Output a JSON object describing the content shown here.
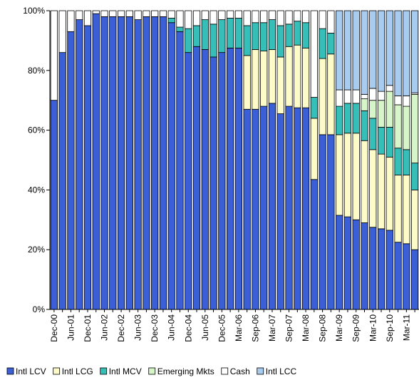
{
  "chart_data": {
    "type": "stacked_bar_100",
    "categories": [
      "Dec-00",
      null,
      "Jun-01",
      null,
      "Dec-01",
      null,
      "Jun-02",
      null,
      "Dec-02",
      null,
      "Jun-03",
      null,
      "Dec-03",
      null,
      "Jun-04",
      null,
      "Dec-04",
      null,
      "Jun-05",
      null,
      "Dec-05",
      null,
      "Mar-06",
      null,
      "Sep-06",
      null,
      "Mar-07",
      null,
      "Sep-07",
      null,
      "Mar-08",
      null,
      "Sep-08",
      null,
      "Mar-09",
      null,
      "Sep-09",
      null,
      "Mar-10",
      null,
      "Sep-10",
      null,
      "Mar-11",
      null
    ],
    "series": [
      {
        "name": "Intl LCV",
        "color": "#3a5fd6",
        "values": [
          70,
          86,
          93,
          97,
          95,
          99,
          98,
          98,
          98,
          98,
          97,
          98,
          98,
          98,
          96,
          93,
          86,
          88,
          87,
          84.5,
          86,
          87.5,
          87.5,
          67,
          67,
          68,
          69,
          65.5,
          68,
          67.5,
          67.5,
          43.5,
          58.5,
          58.5,
          31.5,
          31,
          30,
          29,
          27.5,
          27,
          26.5,
          22.5,
          22,
          20
        ]
      },
      {
        "name": "Intl LCG",
        "color": "#fdfbc8",
        "values": [
          0,
          0,
          0,
          0,
          0,
          0,
          0,
          0,
          0,
          0,
          0,
          0,
          0,
          0,
          0,
          0,
          0,
          0,
          0,
          0,
          0,
          0,
          0,
          18,
          20,
          18.5,
          18,
          19,
          20,
          21,
          20,
          20.5,
          25.5,
          27,
          27,
          28,
          29,
          27.5,
          26,
          25,
          24.5,
          22.5,
          23,
          20
        ]
      },
      {
        "name": "Intl MCV",
        "color": "#35bfb8",
        "values": [
          0,
          0,
          0,
          0,
          0,
          0,
          0,
          0,
          0,
          0,
          0,
          0,
          0,
          0,
          1.5,
          1.5,
          8,
          7,
          10,
          11,
          11,
          10,
          10,
          10,
          9,
          9.5,
          10,
          10.5,
          7.5,
          8,
          8.5,
          7,
          10,
          7,
          9.5,
          10,
          10,
          10,
          10.5,
          9,
          10,
          9,
          8.5,
          9
        ]
      },
      {
        "name": "Emerging Mkts",
        "color": "#d6f5c8",
        "values": [
          0,
          0,
          0,
          0,
          0,
          0,
          0,
          0,
          0,
          0,
          0,
          0,
          0,
          0,
          0,
          0,
          0,
          0,
          0,
          0,
          0,
          0,
          0,
          0,
          0,
          0,
          0,
          0,
          0,
          0,
          0,
          0,
          0,
          0,
          0,
          0,
          0,
          4,
          6,
          9,
          12,
          14.5,
          14.5,
          23
        ]
      },
      {
        "name": "Cash",
        "color": "#ffffff",
        "values": [
          30,
          14,
          7,
          3,
          5,
          1,
          2,
          2,
          2,
          2,
          3,
          2,
          2,
          2,
          2.5,
          5.5,
          6,
          5,
          3,
          4.5,
          3,
          2.5,
          2.5,
          5,
          4,
          4,
          3,
          5,
          4.5,
          3.5,
          4,
          29,
          6,
          7.5,
          5.5,
          4.5,
          4.5,
          1.5,
          4,
          3,
          2,
          3,
          3.5,
          0.5
        ]
      },
      {
        "name": "Intl LCC",
        "color": "#a8cbf0",
        "values": [
          0,
          0,
          0,
          0,
          0,
          0,
          0,
          0,
          0,
          0,
          0,
          0,
          0,
          0,
          0,
          0,
          0,
          0,
          0,
          0,
          0,
          0,
          0,
          0,
          0,
          0,
          0,
          0,
          0,
          0,
          0,
          0,
          0,
          0,
          26.5,
          26.5,
          26.5,
          28,
          26,
          27,
          25,
          28.5,
          28.5,
          27.5
        ]
      }
    ],
    "ylim": [
      0,
      100
    ],
    "yticks": [
      {
        "value": 0,
        "label": "0%"
      },
      {
        "value": 20,
        "label": "20%"
      },
      {
        "value": 40,
        "label": "40%"
      },
      {
        "value": 60,
        "label": "60%"
      },
      {
        "value": 80,
        "label": "80%"
      },
      {
        "value": 100,
        "label": "100%"
      }
    ],
    "legend": "bottom"
  }
}
